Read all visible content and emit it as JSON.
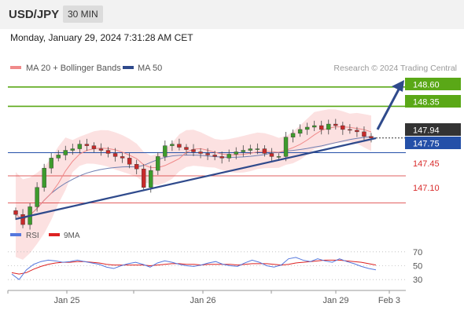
{
  "header": {
    "pair": "USD/JPY",
    "timeframe": "30 MIN"
  },
  "timestamp": "Monday, January 29, 2024 7:31:28 AM CET",
  "legend": {
    "ma20": "MA 20 + Bollinger Bands",
    "ma50": "MA 50",
    "credit": "Research © 2024 Trading Central"
  },
  "levels": {
    "r2": "148.60",
    "r1": "148.35",
    "last": "147.94",
    "pivot": "147.75",
    "s1": "147.45",
    "s2": "147.10"
  },
  "colors": {
    "resistance": "#5aa817",
    "pivot": "#2450a8",
    "support": "#d92c2c",
    "last": "#333333",
    "bull": "#3d9b2c",
    "bear": "#c72a2a",
    "bollinger": "#fbd7d7",
    "ma20": "#f08a8a",
    "ma50": "#6f7fb2",
    "trend": "#2f4a8c",
    "rsi": "#5577dd",
    "ma9": "#dd2222"
  },
  "rsi_legend": {
    "rsi": "RSI",
    "ma9": "9MA"
  },
  "chart_data": [
    {
      "type": "candlestick",
      "ylim": [
        146.78,
        148.75
      ],
      "x_labels": [
        "Jan 25",
        "Jan 26",
        "Jan 29",
        "Feb 3"
      ],
      "horizontal_levels": [
        148.6,
        148.35,
        147.94,
        147.75,
        147.45,
        147.1
      ],
      "close_estimates": [
        146.95,
        146.82,
        147.05,
        147.3,
        147.55,
        147.68,
        147.72,
        147.78,
        147.8,
        147.86,
        147.84,
        147.8,
        147.78,
        147.74,
        147.7,
        147.68,
        147.6,
        147.54,
        147.3,
        147.52,
        147.7,
        147.84,
        147.86,
        147.82,
        147.79,
        147.76,
        147.74,
        147.72,
        147.7,
        147.68,
        147.73,
        147.76,
        147.78,
        147.8,
        147.8,
        147.74,
        147.7,
        147.7,
        147.95,
        148.0,
        148.05,
        148.08,
        148.1,
        148.05,
        148.12,
        148.1,
        148.05,
        148.04,
        148.02,
        147.96,
        147.94
      ]
    },
    {
      "type": "line",
      "title": "RSI",
      "ylim": [
        20,
        80
      ],
      "y_ticks": [
        70,
        50,
        30
      ],
      "series": [
        {
          "name": "RSI",
          "values": [
            38,
            30,
            44,
            52,
            56,
            58,
            57,
            55,
            56,
            58,
            56,
            54,
            52,
            48,
            46,
            50,
            53,
            55,
            52,
            48,
            54,
            57,
            55,
            52,
            50,
            49,
            51,
            54,
            56,
            52,
            50,
            49,
            54,
            58,
            55,
            50,
            48,
            51,
            60,
            62,
            58,
            56,
            60,
            57,
            55,
            60,
            56,
            53,
            49,
            46,
            44
          ]
        },
        {
          "name": "9MA",
          "values": [
            40,
            38,
            40,
            45,
            49,
            52,
            54,
            55,
            55,
            56,
            56,
            55,
            54,
            52,
            51,
            51,
            51,
            51,
            51,
            50,
            51,
            52,
            53,
            53,
            52,
            52,
            51,
            52,
            52,
            52,
            52,
            51,
            52,
            53,
            53,
            53,
            52,
            51,
            52,
            54,
            55,
            56,
            57,
            58,
            58,
            58,
            57,
            56,
            55,
            53,
            51
          ]
        }
      ]
    }
  ]
}
